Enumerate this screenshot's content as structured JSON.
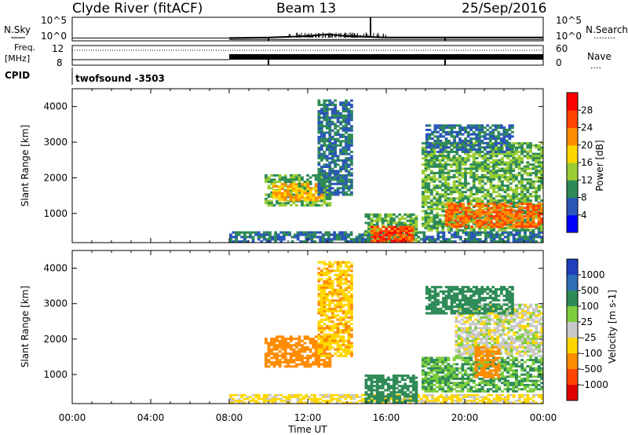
{
  "header": {
    "station": "Clyde River (fitACF)",
    "beam": "Beam 13",
    "date": "25/Sep/2016"
  },
  "noise_panel": {
    "left_label": "N.Sky",
    "right_label": "N.Search",
    "left_ticks": [
      "10^5",
      "10^0"
    ],
    "right_ticks": [
      "10^5",
      "10^0"
    ],
    "right_legend_line": "········"
  },
  "freq_panel": {
    "left_label_top": "Freq.",
    "left_label_bottom": "[MHz]",
    "right_label": "Nave",
    "left_ticks": [
      "12",
      "8"
    ],
    "right_ticks": [
      "60",
      "0"
    ],
    "right_legend_line": "····"
  },
  "cpid_panel": {
    "label": "CPID",
    "program": "twofsound -3503"
  },
  "x_axis": {
    "label": "Time UT",
    "ticks": [
      "00:00",
      "04:00",
      "08:00",
      "12:00",
      "16:00",
      "20:00",
      "00:00"
    ]
  },
  "power_panel": {
    "ylabel": "Slant Range [km]",
    "yticks": [
      "1000",
      "2000",
      "3000",
      "4000"
    ],
    "colorbar_label": "Power [dB]",
    "colorbar_ticks": [
      "4",
      "8",
      "12",
      "16",
      "20",
      "24",
      "28"
    ],
    "colors": [
      "#0000ff",
      "#2a56b8",
      "#2e8b57",
      "#9acd32",
      "#ffd700",
      "#ff8c00",
      "#ff4500",
      "#ff0000"
    ]
  },
  "velocity_panel": {
    "ylabel": "Slant Range [km]",
    "yticks": [
      "1000",
      "2000",
      "3000",
      "4000"
    ],
    "colorbar_label": "Velocity [m s-1]",
    "colorbar_ticks": [
      "1000",
      "500",
      "100",
      "25",
      "-25",
      "-100",
      "-500",
      "-1000"
    ],
    "colors": [
      "#1f3fbf",
      "#2e6db4",
      "#2e8b57",
      "#7ccd3c",
      "#c8c8c8",
      "#ffd700",
      "#ff8c00",
      "#ff4500",
      "#e00000"
    ]
  },
  "chart_data": [
    {
      "type": "line",
      "title": "N.Sky / N.Search",
      "x_range_hours": [
        0,
        24
      ],
      "ylim": [
        "10^0",
        "10^5"
      ],
      "series": [
        {
          "name": "N.Sky",
          "x": [
            8,
            10,
            12,
            13,
            14,
            16,
            19,
            22,
            24
          ],
          "log_values": [
            0.6,
            0.7,
            1.0,
            1.4,
            1.0,
            0.7,
            0.7,
            0.7,
            0.7
          ]
        },
        {
          "name": "N.Search",
          "x": [
            8,
            24
          ],
          "log_values": [
            0.3,
            0.3
          ]
        }
      ]
    },
    {
      "type": "line",
      "title": "Freq. / Nave",
      "x_range_hours": [
        0,
        24
      ],
      "series": [
        {
          "name": "Freq. [MHz]",
          "x": [
            8,
            24
          ],
          "values": [
            11,
            11
          ]
        },
        {
          "name": "Nave",
          "x": [
            8,
            24
          ],
          "values": [
            20,
            20
          ]
        }
      ]
    },
    {
      "type": "heatmap",
      "title": "Power [dB]",
      "xlabel": "Time UT",
      "ylabel": "Slant Range [km]",
      "x_range_hours": [
        0,
        24
      ],
      "ylim_km": [
        180,
        4500
      ],
      "colorbar_range_db": [
        0,
        32
      ],
      "regions": [
        {
          "t0": 8.0,
          "t1": 24.0,
          "r0": 180,
          "r1": 500,
          "level_db": 8
        },
        {
          "t0": 9.8,
          "t1": 13.2,
          "r0": 1200,
          "r1": 2100,
          "level_db": 12
        },
        {
          "t0": 10.2,
          "t1": 12.8,
          "r0": 1350,
          "r1": 1850,
          "level_db": 20
        },
        {
          "t0": 14.9,
          "t1": 17.6,
          "r0": 180,
          "r1": 1000,
          "level_db": 12
        },
        {
          "t0": 15.2,
          "t1": 17.4,
          "r0": 200,
          "r1": 650,
          "level_db": 26
        },
        {
          "t0": 17.8,
          "t1": 24.0,
          "r0": 500,
          "r1": 3000,
          "level_db": 12
        },
        {
          "t0": 19.0,
          "t1": 24.0,
          "r0": 600,
          "r1": 1300,
          "level_db": 24
        },
        {
          "t0": 18.0,
          "t1": 22.5,
          "r0": 2700,
          "r1": 3500,
          "level_db": 8
        },
        {
          "t0": 12.5,
          "t1": 14.3,
          "r0": 1500,
          "r1": 4200,
          "level_db": 8
        }
      ]
    },
    {
      "type": "heatmap",
      "title": "Velocity [m s-1]",
      "xlabel": "Time UT",
      "ylabel": "Slant Range [km]",
      "x_range_hours": [
        0,
        24
      ],
      "ylim_km": [
        180,
        4500
      ],
      "regions": [
        {
          "t0": 8.0,
          "t1": 24.0,
          "r0": 180,
          "r1": 450,
          "velocity": -50
        },
        {
          "t0": 9.8,
          "t1": 13.2,
          "r0": 1200,
          "r1": 2100,
          "velocity": -300
        },
        {
          "t0": 14.9,
          "t1": 17.6,
          "r0": 180,
          "r1": 1000,
          "velocity": 200
        },
        {
          "t0": 17.8,
          "t1": 24.0,
          "r0": 500,
          "r1": 1500,
          "velocity": 100
        },
        {
          "t0": 19.5,
          "t1": 24.0,
          "r0": 1500,
          "r1": 3000,
          "velocity": 0
        },
        {
          "t0": 20.5,
          "t1": 21.8,
          "r0": 900,
          "r1": 1800,
          "velocity": -300
        },
        {
          "t0": 18.0,
          "t1": 22.5,
          "r0": 2700,
          "r1": 3500,
          "velocity": 300
        },
        {
          "t0": 12.5,
          "t1": 14.3,
          "r0": 1500,
          "r1": 4200,
          "velocity": -80
        }
      ]
    }
  ]
}
